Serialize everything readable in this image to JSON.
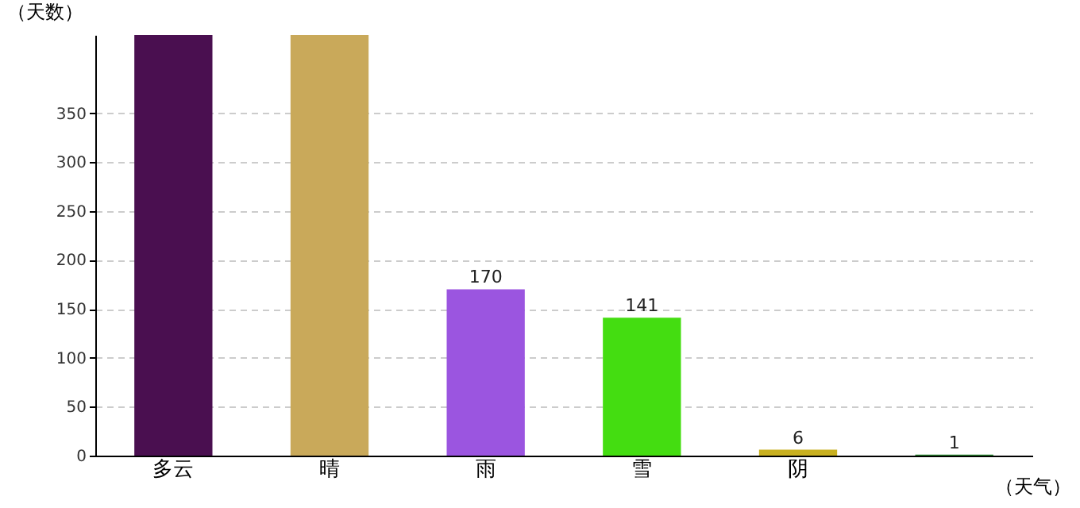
{
  "chart_data": {
    "type": "bar",
    "xlabel": "（天气）",
    "ylabel": "（天数）",
    "categories": [
      "多云",
      "晴",
      "雨",
      "雪",
      "阴",
      null
    ],
    "values": [
      430,
      430,
      170,
      141,
      6,
      1
    ],
    "colors": [
      "#4a0f50",
      "#c9a95a",
      "#9b55e0",
      "#44dd11",
      "#c8b020",
      "#2a8a30"
    ],
    "value_labels": [
      null,
      null,
      "170",
      "141",
      "6",
      "1"
    ],
    "ylim": [
      0,
      430
    ],
    "yticks": [
      0,
      50,
      100,
      150,
      200,
      250,
      300,
      350
    ],
    "grid": "y"
  }
}
